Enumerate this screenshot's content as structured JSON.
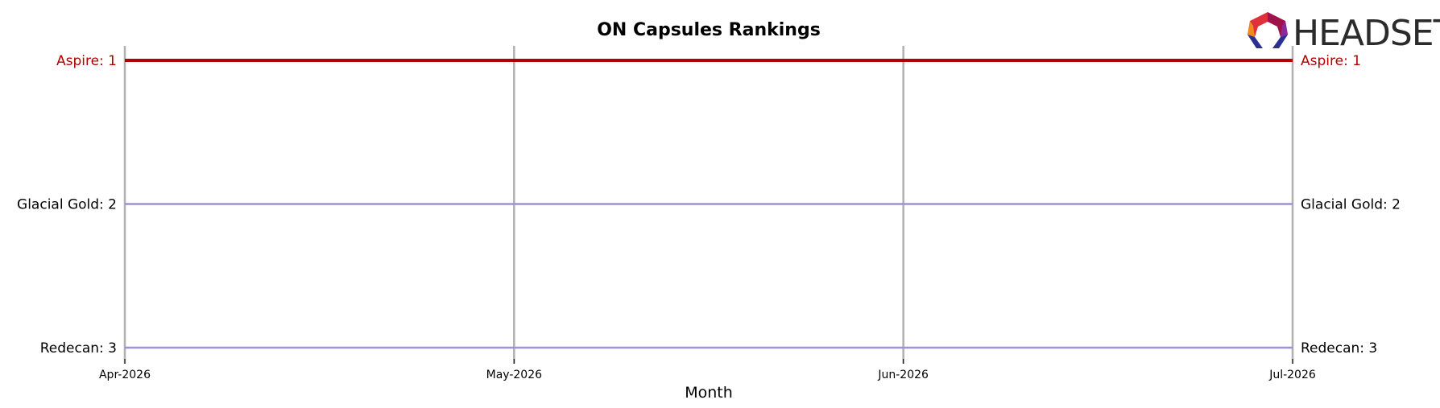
{
  "chart_data": {
    "type": "line",
    "title": "ON Capsules Rankings",
    "xlabel": "Month",
    "ylabel": "",
    "x": [
      "Apr-2026",
      "May-2026",
      "Jun-2026",
      "Jul-2026"
    ],
    "ylim": [
      3,
      1
    ],
    "y_inverted": true,
    "grid": "vertical",
    "series": [
      {
        "name": "Aspire",
        "values": [
          1,
          1,
          1,
          1
        ],
        "color": "#b00000",
        "highlight": true
      },
      {
        "name": "Glacial Gold",
        "values": [
          2,
          2,
          2,
          2
        ],
        "color": "#9b93d6",
        "highlight": false
      },
      {
        "name": "Redecan",
        "values": [
          3,
          3,
          3,
          3
        ],
        "color": "#9b93d6",
        "highlight": false
      }
    ]
  },
  "logo": {
    "text": "HEADSET",
    "icon": "headset-logo-icon"
  }
}
